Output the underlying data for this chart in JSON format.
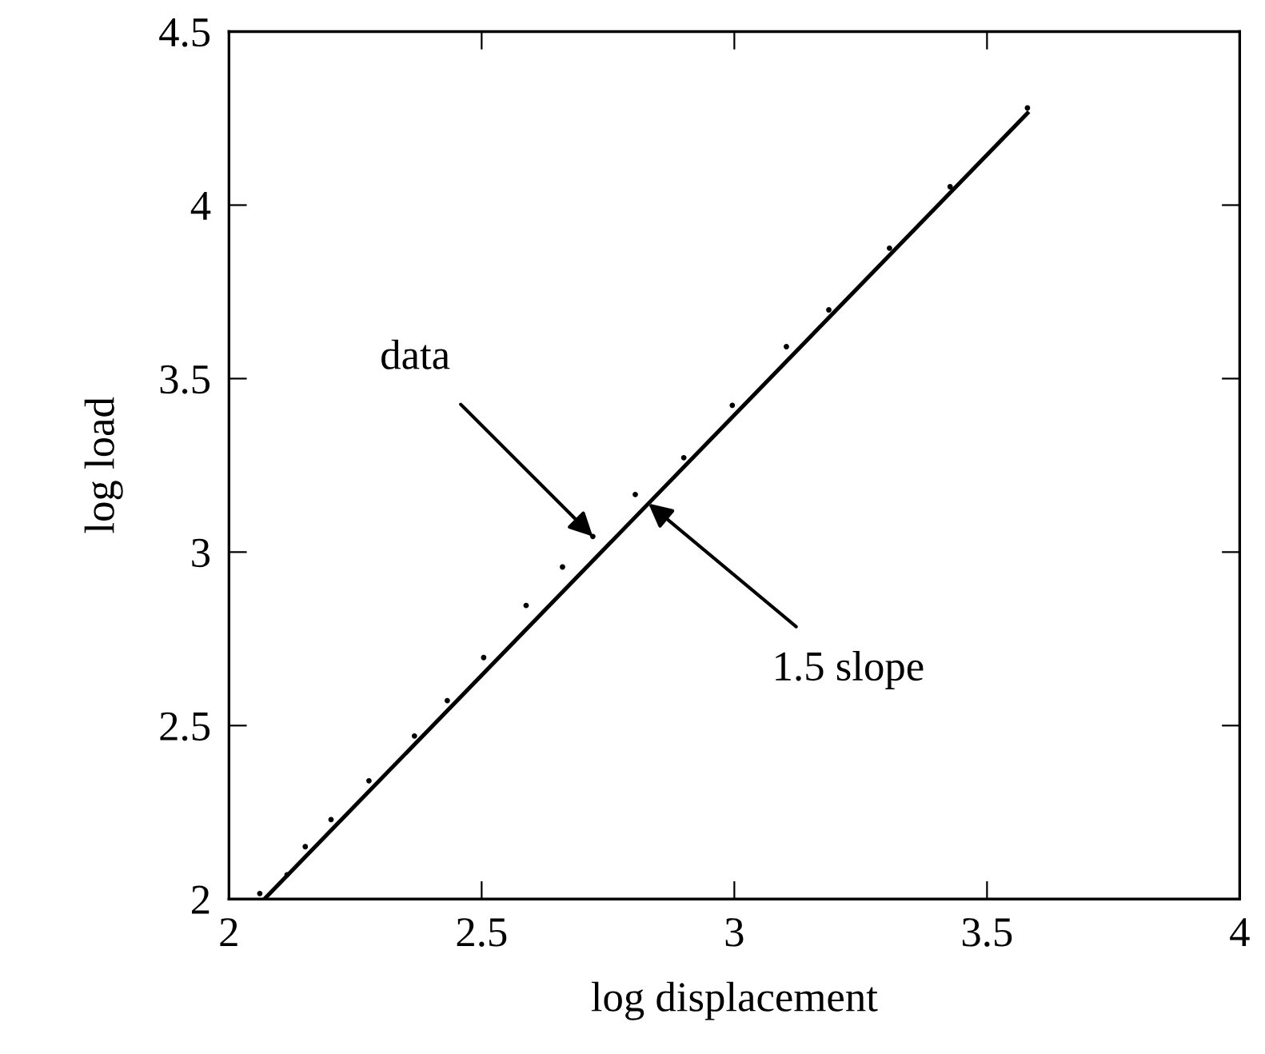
{
  "chart_data": {
    "type": "scatter",
    "xlabel": "log displacement",
    "ylabel": "log load",
    "xlim": [
      2,
      4
    ],
    "ylim": [
      2,
      4.5
    ],
    "xticks": [
      2,
      2.5,
      3,
      3.5,
      4
    ],
    "yticks": [
      2,
      2.5,
      3,
      3.5,
      4,
      4.5
    ],
    "grid": false,
    "series": [
      {
        "color": "#000000",
        "marker": "circle",
        "x": [
          2.061,
          2.115,
          2.151,
          2.202,
          2.277,
          2.367,
          2.432,
          2.504,
          2.588,
          2.66,
          2.72,
          2.804,
          2.9,
          2.996,
          3.103,
          3.187,
          3.307,
          3.427,
          3.58
        ],
        "values": [
          2.016,
          2.07,
          2.151,
          2.229,
          2.341,
          2.47,
          2.572,
          2.696,
          2.846,
          2.957,
          3.045,
          3.166,
          3.272,
          3.423,
          3.592,
          3.698,
          3.876,
          4.053,
          4.28
        ]
      },
      {
        "type": "line",
        "color": "#000000",
        "marker": "none",
        "line_style": "solid",
        "x": [
          2.07,
          3.58
        ],
        "values": [
          2.0,
          4.265
        ]
      }
    ],
    "annotations": [
      {
        "text": "data",
        "x": 2.72,
        "y": 3.045
      },
      {
        "text": "1.5 slope",
        "x": 2.83,
        "y": 3.14
      }
    ]
  }
}
